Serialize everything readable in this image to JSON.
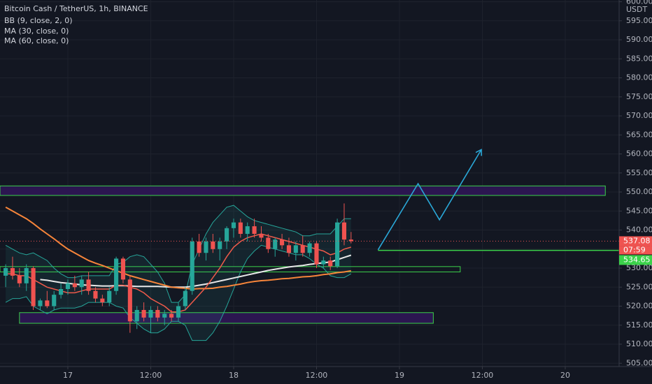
{
  "chart_data": {
    "type": "candlestick",
    "title": "Bitcoin Cash / TetherUS, 1h, BINANCE",
    "y_unit": "USDT",
    "up_color": "#26a69a",
    "down_color": "#ef5350",
    "grid": true,
    "x": [
      -9,
      -8,
      -7,
      -6,
      -5,
      -4,
      -3,
      -2,
      -1,
      0,
      1,
      2,
      3,
      4,
      5,
      6,
      7,
      8,
      9,
      10,
      11,
      12,
      13,
      14,
      15,
      16,
      17,
      18,
      19,
      20,
      21,
      22,
      23,
      24,
      25,
      26,
      27,
      28,
      29,
      30,
      31,
      32,
      33,
      34,
      35,
      36,
      37,
      38,
      39,
      40,
      41
    ],
    "open": [
      528,
      530,
      528,
      526,
      530,
      520,
      521.5,
      520,
      523,
      524.5,
      526,
      525,
      527,
      524,
      522,
      521,
      524,
      532.5,
      527,
      516,
      519,
      517,
      519,
      517,
      518,
      517,
      520,
      524,
      537,
      534,
      537,
      535,
      537,
      540.5,
      542,
      539,
      541,
      539,
      538,
      535,
      537.5,
      536,
      534,
      536,
      534,
      536.5,
      531,
      532,
      530.5,
      542,
      537.5
    ],
    "high": [
      531,
      533,
      530,
      531,
      530.5,
      522,
      524,
      524,
      526,
      527,
      528,
      528,
      529,
      525,
      523,
      525,
      533,
      533,
      528,
      520,
      521,
      520,
      520,
      519,
      519,
      521,
      525,
      538,
      539,
      538,
      539,
      538,
      541,
      543,
      543,
      542,
      543,
      541,
      539,
      538,
      539,
      538,
      537,
      538.5,
      537,
      537,
      533,
      533,
      543,
      547,
      539.5
    ],
    "low": [
      525,
      527,
      525,
      524,
      519,
      519,
      519.5,
      519,
      522,
      523,
      524,
      523,
      523,
      521,
      520,
      520,
      523,
      526,
      513,
      514,
      516,
      513,
      516,
      515,
      516,
      516,
      519,
      523,
      533,
      532,
      534,
      532,
      535,
      538,
      538,
      537,
      538,
      537,
      534,
      533,
      535,
      533,
      532,
      533,
      533,
      530,
      530,
      529.5,
      530,
      536,
      536.5
    ],
    "close": [
      530,
      528,
      526,
      530,
      520,
      521.5,
      520,
      523,
      524.5,
      526,
      525,
      527,
      524,
      522,
      521,
      524,
      532.5,
      527,
      516,
      519,
      517,
      519,
      517,
      518,
      517,
      520,
      524,
      537,
      534,
      537,
      535,
      537,
      540.5,
      542,
      539,
      541,
      539,
      538,
      535,
      537.5,
      536,
      534,
      536,
      534,
      536.5,
      531,
      532,
      530.5,
      542,
      537.5,
      537.08
    ],
    "bb": {
      "name": "BB (9, close, 2, 0)",
      "basis_color": "#f05a4a",
      "band_color": "#26a69a",
      "basis": [
        528.5,
        528.5,
        528,
        528,
        527,
        526,
        525,
        524.5,
        524,
        523.5,
        523.5,
        524,
        524.5,
        524.5,
        524.5,
        524.5,
        525.5,
        525.5,
        525,
        524.5,
        523.5,
        522,
        521,
        520,
        518.5,
        518.5,
        519,
        521,
        523,
        525,
        527.5,
        530,
        533,
        535.5,
        537,
        538,
        538.5,
        539,
        538.5,
        538,
        537.5,
        537,
        536.5,
        536,
        535.5,
        535,
        534.5,
        533.5,
        534,
        535,
        535.5
      ],
      "upper": [
        536,
        535,
        534,
        533.5,
        534,
        533,
        532,
        530,
        528.5,
        527.5,
        527.5,
        528,
        528,
        528,
        528,
        528,
        531,
        531.5,
        533,
        533.5,
        533,
        531,
        529,
        526,
        521,
        521,
        523,
        531,
        535,
        539,
        542,
        544,
        546,
        546.5,
        545,
        543.5,
        542.5,
        542,
        541.5,
        541,
        540.5,
        540,
        539.5,
        538.5,
        538.5,
        539,
        539,
        539,
        541,
        543,
        543
      ],
      "lower": [
        521,
        522,
        522,
        522.5,
        520,
        519,
        518,
        519,
        519.5,
        519.5,
        519.5,
        520,
        521,
        521,
        521,
        521,
        520,
        519.5,
        517,
        515.5,
        514,
        513,
        513,
        514,
        516,
        516,
        515,
        511,
        511,
        511,
        513,
        516,
        520,
        524.5,
        529,
        532.5,
        534.5,
        536,
        535.5,
        535,
        534.5,
        534,
        533.5,
        533.5,
        532.5,
        531,
        530,
        528,
        527.5,
        527.5,
        528.5
      ]
    },
    "series": [
      {
        "name": "MA (30, close, 0)",
        "color": "#e8e8e8",
        "values": [
          null,
          null,
          null,
          null,
          null,
          527,
          526.8,
          526.5,
          526.2,
          526,
          525.8,
          525.6,
          525.5,
          525.4,
          525.3,
          525.3,
          525.4,
          525.4,
          525.3,
          525.2,
          525.2,
          525.2,
          525.2,
          525.1,
          525,
          525,
          525,
          525.2,
          525.5,
          525.8,
          526.2,
          526.6,
          527,
          527.4,
          527.8,
          528.2,
          528.6,
          529,
          529.4,
          529.7,
          530,
          530.3,
          530.5,
          530.7,
          531,
          531.2,
          531.4,
          531.6,
          532.2,
          532.8,
          533.4
        ]
      },
      {
        "name": "MA (60, close, 0)",
        "color": "#f7853a",
        "values": [
          546,
          545,
          544,
          543,
          541.7,
          540.3,
          539,
          537.7,
          536.3,
          535,
          534,
          533,
          532,
          531.3,
          530.7,
          530,
          529.3,
          528.7,
          528,
          527.5,
          527,
          526.5,
          526,
          525.5,
          525,
          524.8,
          524.7,
          524.5,
          524.6,
          524.6,
          524.7,
          525,
          525.2,
          525.5,
          525.8,
          526.2,
          526.5,
          526.7,
          526.8,
          527,
          527.2,
          527.3,
          527.5,
          527.7,
          527.8,
          528,
          528.3,
          528.5,
          528.8,
          529,
          529.3
        ]
      }
    ],
    "zones": [
      {
        "low": 549.1,
        "high": 551.6,
        "x0": -9.82,
        "x1": 77.8,
        "fill": "#2b1650",
        "border": "#3bd14a"
      },
      {
        "low": 529.0,
        "high": 530.4,
        "x0": -9.82,
        "x1": 56.8,
        "fill": "#131722",
        "border": "#3bd14a"
      },
      {
        "low": 515.5,
        "high": 518.3,
        "x0": -7.0,
        "x1": 52.9,
        "fill": "#2b1650",
        "border": "#3bd14a"
      }
    ],
    "level": {
      "price": 534.65,
      "x0": 44.9,
      "color": "#3bd14a"
    },
    "arrow": {
      "x": [
        44.9,
        50.7,
        53.8,
        59.8
      ],
      "y": [
        534.8,
        552.2,
        542.7,
        561.0
      ],
      "color": "#2aa8d8"
    },
    "last_price": 537.08,
    "countdown": "07:59",
    "xlim": [
      -9.82,
      79.8
    ],
    "xticks": [
      {
        "value": 0,
        "label": "17"
      },
      {
        "value": 12,
        "label": "12:00"
      },
      {
        "value": 24,
        "label": "18"
      },
      {
        "value": 36,
        "label": "12:00"
      },
      {
        "value": 48,
        "label": "19"
      },
      {
        "value": 60,
        "label": "12:00"
      },
      {
        "value": 72,
        "label": "20"
      }
    ],
    "ylim": [
      504.13,
      600.46
    ],
    "yticks": [
      {
        "value": 505,
        "label": "505.00"
      },
      {
        "value": 510,
        "label": "510.00"
      },
      {
        "value": 515,
        "label": "515.00"
      },
      {
        "value": 520,
        "label": "520.00"
      },
      {
        "value": 525,
        "label": "525.00"
      },
      {
        "value": 530,
        "label": "530.00"
      },
      {
        "value": 535,
        "label": "535.00"
      },
      {
        "value": 540,
        "label": "540.00"
      },
      {
        "value": 545,
        "label": "545.00"
      },
      {
        "value": 550,
        "label": "550.00"
      },
      {
        "value": 555,
        "label": "555.00"
      },
      {
        "value": 560,
        "label": "560.00"
      },
      {
        "value": 565,
        "label": "565.00"
      },
      {
        "value": 570,
        "label": "570.00"
      },
      {
        "value": 575,
        "label": "575.00"
      },
      {
        "value": 580,
        "label": "580.00"
      },
      {
        "value": 585,
        "label": "585.00"
      },
      {
        "value": 590,
        "label": "590.00"
      },
      {
        "value": 595,
        "label": "595.00"
      },
      {
        "value": 600,
        "label": "600.00"
      }
    ]
  }
}
